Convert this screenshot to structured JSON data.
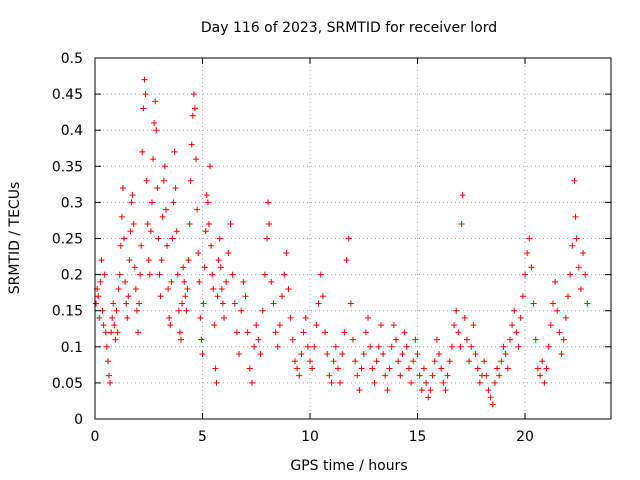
{
  "chart_data": {
    "type": "scatter",
    "title": "Day 116 of 2023, SRMTID for receiver lord",
    "xlabel": "GPS time / hours",
    "ylabel": "SRMTID / TECUs",
    "xlim": [
      0,
      24
    ],
    "ylim": [
      0,
      0.5
    ],
    "x_ticks": [
      0,
      5,
      10,
      15,
      20
    ],
    "x_tick_labels": [
      "0",
      "5",
      "10",
      "15",
      "20"
    ],
    "y_ticks": [
      0,
      0.05,
      0.1,
      0.15,
      0.2,
      0.25,
      0.3,
      0.35,
      0.4,
      0.45,
      0.5
    ],
    "y_tick_labels": [
      "0",
      "0.05",
      "0.1",
      "0.15",
      "0.2",
      "0.25",
      "0.3",
      "0.35",
      "0.4",
      "0.45",
      "0.5"
    ],
    "grid": true,
    "marker": "+",
    "series_color": "#ff0000",
    "series": [
      {
        "name": "SRMTID",
        "points": [
          [
            0.05,
            0.16
          ],
          [
            0.1,
            0.18
          ],
          [
            0.15,
            0.17
          ],
          [
            0.2,
            0.14
          ],
          [
            0.25,
            0.19
          ],
          [
            0.3,
            0.22
          ],
          [
            0.35,
            0.15
          ],
          [
            0.4,
            0.13
          ],
          [
            0.45,
            0.2
          ],
          [
            0.5,
            0.12
          ],
          [
            0.55,
            0.1
          ],
          [
            0.6,
            0.08
          ],
          [
            0.65,
            0.06
          ],
          [
            0.7,
            0.05
          ],
          [
            0.75,
            0.12
          ],
          [
            0.8,
            0.14
          ],
          [
            0.85,
            0.16
          ],
          [
            0.9,
            0.13
          ],
          [
            0.95,
            0.11
          ],
          [
            1.0,
            0.15
          ],
          [
            1.05,
            0.12
          ],
          [
            1.1,
            0.18
          ],
          [
            1.15,
            0.2
          ],
          [
            1.2,
            0.24
          ],
          [
            1.25,
            0.28
          ],
          [
            1.3,
            0.32
          ],
          [
            1.35,
            0.25
          ],
          [
            1.4,
            0.19
          ],
          [
            1.45,
            0.16
          ],
          [
            1.5,
            0.14
          ],
          [
            1.55,
            0.17
          ],
          [
            1.6,
            0.22
          ],
          [
            1.65,
            0.26
          ],
          [
            1.7,
            0.3
          ],
          [
            1.75,
            0.31
          ],
          [
            1.8,
            0.27
          ],
          [
            1.85,
            0.21
          ],
          [
            1.9,
            0.18
          ],
          [
            1.95,
            0.15
          ],
          [
            2.0,
            0.12
          ],
          [
            2.05,
            0.16
          ],
          [
            2.1,
            0.2
          ],
          [
            2.15,
            0.24
          ],
          [
            2.2,
            0.37
          ],
          [
            2.25,
            0.43
          ],
          [
            2.3,
            0.47
          ],
          [
            2.35,
            0.45
          ],
          [
            2.4,
            0.33
          ],
          [
            2.45,
            0.27
          ],
          [
            2.5,
            0.22
          ],
          [
            2.55,
            0.2
          ],
          [
            2.6,
            0.26
          ],
          [
            2.65,
            0.3
          ],
          [
            2.7,
            0.36
          ],
          [
            2.75,
            0.41
          ],
          [
            2.8,
            0.44
          ],
          [
            2.85,
            0.4
          ],
          [
            2.9,
            0.32
          ],
          [
            2.95,
            0.25
          ],
          [
            3.0,
            0.2
          ],
          [
            3.05,
            0.17
          ],
          [
            3.1,
            0.22
          ],
          [
            3.15,
            0.28
          ],
          [
            3.2,
            0.33
          ],
          [
            3.25,
            0.35
          ],
          [
            3.3,
            0.29
          ],
          [
            3.35,
            0.24
          ],
          [
            3.4,
            0.18
          ],
          [
            3.45,
            0.14
          ],
          [
            3.5,
            0.13
          ],
          [
            3.55,
            0.19
          ],
          [
            3.6,
            0.25
          ],
          [
            3.65,
            0.3
          ],
          [
            3.7,
            0.37
          ],
          [
            3.75,
            0.32
          ],
          [
            3.8,
            0.26
          ],
          [
            3.85,
            0.2
          ],
          [
            3.9,
            0.15
          ],
          [
            3.95,
            0.12
          ],
          [
            4.0,
            0.11
          ],
          [
            4.05,
            0.16
          ],
          [
            4.1,
            0.21
          ],
          [
            4.15,
            0.19
          ],
          [
            4.2,
            0.17
          ],
          [
            4.25,
            0.15
          ],
          [
            4.3,
            0.18
          ],
          [
            4.35,
            0.22
          ],
          [
            4.4,
            0.27
          ],
          [
            4.45,
            0.33
          ],
          [
            4.5,
            0.38
          ],
          [
            4.55,
            0.42
          ],
          [
            4.6,
            0.45
          ],
          [
            4.65,
            0.43
          ],
          [
            4.7,
            0.36
          ],
          [
            4.75,
            0.29
          ],
          [
            4.8,
            0.23
          ],
          [
            4.85,
            0.19
          ],
          [
            4.9,
            0.14
          ],
          [
            4.95,
            0.11
          ],
          [
            5.0,
            0.09
          ],
          [
            5.05,
            0.16
          ],
          [
            5.1,
            0.21
          ],
          [
            5.15,
            0.26
          ],
          [
            5.2,
            0.31
          ],
          [
            5.25,
            0.3
          ],
          [
            5.3,
            0.27
          ],
          [
            5.35,
            0.35
          ],
          [
            5.4,
            0.24
          ],
          [
            5.45,
            0.2
          ],
          [
            5.5,
            0.18
          ],
          [
            5.55,
            0.13
          ],
          [
            5.6,
            0.07
          ],
          [
            5.65,
            0.05
          ],
          [
            5.7,
            0.17
          ],
          [
            5.75,
            0.22
          ],
          [
            5.8,
            0.25
          ],
          [
            5.85,
            0.21
          ],
          [
            5.9,
            0.18
          ],
          [
            5.95,
            0.16
          ],
          [
            6.0,
            0.14
          ],
          [
            6.1,
            0.19
          ],
          [
            6.2,
            0.23
          ],
          [
            6.3,
            0.27
          ],
          [
            6.4,
            0.2
          ],
          [
            6.5,
            0.16
          ],
          [
            6.6,
            0.12
          ],
          [
            6.7,
            0.09
          ],
          [
            6.8,
            0.15
          ],
          [
            6.9,
            0.19
          ],
          [
            7.0,
            0.17
          ],
          [
            7.1,
            0.12
          ],
          [
            7.2,
            0.07
          ],
          [
            7.3,
            0.05
          ],
          [
            7.4,
            0.1
          ],
          [
            7.5,
            0.13
          ],
          [
            7.6,
            0.11
          ],
          [
            7.7,
            0.09
          ],
          [
            7.8,
            0.15
          ],
          [
            7.9,
            0.2
          ],
          [
            8.0,
            0.25
          ],
          [
            8.05,
            0.3
          ],
          [
            8.1,
            0.27
          ],
          [
            8.2,
            0.19
          ],
          [
            8.3,
            0.16
          ],
          [
            8.4,
            0.12
          ],
          [
            8.5,
            0.1
          ],
          [
            8.6,
            0.13
          ],
          [
            8.7,
            0.17
          ],
          [
            8.8,
            0.2
          ],
          [
            8.9,
            0.23
          ],
          [
            9.0,
            0.18
          ],
          [
            9.1,
            0.14
          ],
          [
            9.2,
            0.11
          ],
          [
            9.3,
            0.08
          ],
          [
            9.4,
            0.07
          ],
          [
            9.5,
            0.06
          ],
          [
            9.6,
            0.09
          ],
          [
            9.7,
            0.12
          ],
          [
            9.8,
            0.14
          ],
          [
            9.9,
            0.1
          ],
          [
            10.0,
            0.08
          ],
          [
            10.1,
            0.07
          ],
          [
            10.2,
            0.1
          ],
          [
            10.3,
            0.13
          ],
          [
            10.4,
            0.16
          ],
          [
            10.5,
            0.2
          ],
          [
            10.6,
            0.17
          ],
          [
            10.7,
            0.12
          ],
          [
            10.8,
            0.09
          ],
          [
            10.9,
            0.06
          ],
          [
            11.0,
            0.05
          ],
          [
            11.1,
            0.08
          ],
          [
            11.2,
            0.1
          ],
          [
            11.3,
            0.07
          ],
          [
            11.4,
            0.05
          ],
          [
            11.5,
            0.09
          ],
          [
            11.6,
            0.12
          ],
          [
            11.7,
            0.22
          ],
          [
            11.8,
            0.25
          ],
          [
            11.9,
            0.16
          ],
          [
            12.0,
            0.11
          ],
          [
            12.1,
            0.08
          ],
          [
            12.2,
            0.06
          ],
          [
            12.3,
            0.04
          ],
          [
            12.4,
            0.07
          ],
          [
            12.5,
            0.09
          ],
          [
            12.6,
            0.12
          ],
          [
            12.7,
            0.14
          ],
          [
            12.8,
            0.1
          ],
          [
            12.9,
            0.07
          ],
          [
            13.0,
            0.05
          ],
          [
            13.1,
            0.08
          ],
          [
            13.2,
            0.1
          ],
          [
            13.3,
            0.13
          ],
          [
            13.4,
            0.09
          ],
          [
            13.5,
            0.06
          ],
          [
            13.6,
            0.04
          ],
          [
            13.7,
            0.07
          ],
          [
            13.8,
            0.1
          ],
          [
            13.9,
            0.13
          ],
          [
            14.0,
            0.11
          ],
          [
            14.1,
            0.08
          ],
          [
            14.2,
            0.06
          ],
          [
            14.3,
            0.09
          ],
          [
            14.4,
            0.12
          ],
          [
            14.5,
            0.1
          ],
          [
            14.6,
            0.07
          ],
          [
            14.7,
            0.05
          ],
          [
            14.8,
            0.08
          ],
          [
            14.9,
            0.11
          ],
          [
            15.0,
            0.09
          ],
          [
            15.1,
            0.06
          ],
          [
            15.2,
            0.04
          ],
          [
            15.3,
            0.07
          ],
          [
            15.4,
            0.05
          ],
          [
            15.5,
            0.03
          ],
          [
            15.6,
            0.04
          ],
          [
            15.7,
            0.06
          ],
          [
            15.8,
            0.08
          ],
          [
            15.9,
            0.11
          ],
          [
            16.0,
            0.09
          ],
          [
            16.1,
            0.07
          ],
          [
            16.2,
            0.05
          ],
          [
            16.3,
            0.04
          ],
          [
            16.4,
            0.06
          ],
          [
            16.5,
            0.08
          ],
          [
            16.6,
            0.1
          ],
          [
            16.7,
            0.13
          ],
          [
            16.8,
            0.15
          ],
          [
            16.9,
            0.12
          ],
          [
            17.0,
            0.1
          ],
          [
            17.05,
            0.27
          ],
          [
            17.1,
            0.31
          ],
          [
            17.2,
            0.14
          ],
          [
            17.3,
            0.11
          ],
          [
            17.4,
            0.08
          ],
          [
            17.5,
            0.1
          ],
          [
            17.6,
            0.13
          ],
          [
            17.7,
            0.09
          ],
          [
            17.8,
            0.07
          ],
          [
            17.9,
            0.05
          ],
          [
            18.0,
            0.06
          ],
          [
            18.1,
            0.08
          ],
          [
            18.2,
            0.06
          ],
          [
            18.3,
            0.04
          ],
          [
            18.4,
            0.03
          ],
          [
            18.5,
            0.02
          ],
          [
            18.6,
            0.05
          ],
          [
            18.7,
            0.07
          ],
          [
            18.8,
            0.06
          ],
          [
            18.9,
            0.08
          ],
          [
            19.0,
            0.1
          ],
          [
            19.1,
            0.09
          ],
          [
            19.2,
            0.07
          ],
          [
            19.3,
            0.11
          ],
          [
            19.4,
            0.13
          ],
          [
            19.5,
            0.15
          ],
          [
            19.6,
            0.12
          ],
          [
            19.7,
            0.1
          ],
          [
            19.8,
            0.14
          ],
          [
            19.9,
            0.17
          ],
          [
            20.0,
            0.2
          ],
          [
            20.1,
            0.23
          ],
          [
            20.2,
            0.25
          ],
          [
            20.3,
            0.21
          ],
          [
            20.4,
            0.16
          ],
          [
            20.5,
            0.11
          ],
          [
            20.6,
            0.07
          ],
          [
            20.7,
            0.06
          ],
          [
            20.8,
            0.08
          ],
          [
            20.9,
            0.05
          ],
          [
            21.0,
            0.07
          ],
          [
            21.1,
            0.1
          ],
          [
            21.2,
            0.13
          ],
          [
            21.3,
            0.16
          ],
          [
            21.4,
            0.19
          ],
          [
            21.5,
            0.15
          ],
          [
            21.6,
            0.12
          ],
          [
            21.7,
            0.09
          ],
          [
            21.8,
            0.11
          ],
          [
            21.9,
            0.14
          ],
          [
            22.0,
            0.17
          ],
          [
            22.1,
            0.2
          ],
          [
            22.2,
            0.24
          ],
          [
            22.3,
            0.33
          ],
          [
            22.35,
            0.28
          ],
          [
            22.4,
            0.25
          ],
          [
            22.5,
            0.21
          ],
          [
            22.6,
            0.18
          ],
          [
            22.7,
            0.23
          ],
          [
            22.8,
            0.2
          ],
          [
            22.9,
            0.16
          ]
        ]
      }
    ]
  }
}
